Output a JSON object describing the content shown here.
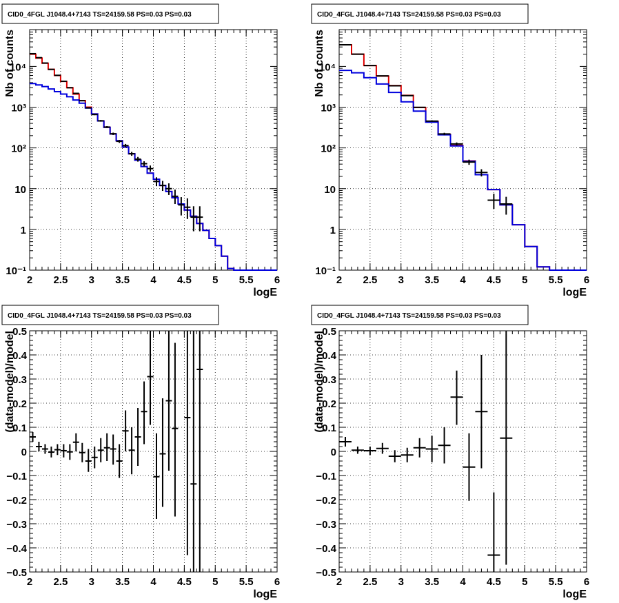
{
  "colors": {
    "total_model": "#e00000",
    "source_model": "#0000dd",
    "data": "#000000",
    "grid": "#000000"
  },
  "chart_data": [
    {
      "type": "line",
      "title": "CID0_4FGL J1048.4+7143 TS=24159.58 PS=0.03 PS=0.03",
      "xlabel": "logE",
      "ylabel": "Nb of counts",
      "yscale": "log",
      "xlim": [
        2,
        6
      ],
      "ylim": [
        0.1,
        80000
      ],
      "xticks": [
        "2",
        "2.5",
        "3",
        "3.5",
        "4",
        "4.5",
        "5",
        "5.5",
        "6"
      ],
      "yticks": [
        {
          "v": 0.1,
          "label": "10⁻¹"
        },
        {
          "v": 1,
          "label": "1"
        },
        {
          "v": 10,
          "label": "10"
        },
        {
          "v": 100,
          "label": "10²"
        },
        {
          "v": 1000,
          "label": "10³"
        },
        {
          "v": 10000,
          "label": "10⁴"
        }
      ],
      "grid": true,
      "bin_edges": [
        2.0,
        2.1,
        2.2,
        2.3,
        2.4,
        2.5,
        2.6,
        2.7,
        2.8,
        2.9,
        3.0,
        3.1,
        3.2,
        3.3,
        3.4,
        3.5,
        3.6,
        3.7,
        3.8,
        3.9,
        4.0,
        4.1,
        4.2,
        4.3,
        4.4,
        4.5,
        4.6,
        4.7,
        4.8,
        4.9,
        5.0,
        5.1,
        5.2,
        5.3,
        5.4,
        5.5,
        5.6,
        5.7,
        5.8,
        5.9,
        6.0
      ],
      "series": [
        {
          "role": "total",
          "values": [
            20000,
            16000,
            12000,
            8500,
            6000,
            4300,
            3000,
            2100,
            1450,
            1000,
            680,
            460,
            320,
            220,
            150,
            105,
            72,
            50,
            35,
            24,
            17,
            12,
            8.5,
            6,
            4.2,
            3,
            2.1,
            1.4,
            0.95,
            0.6,
            0.4,
            0.22,
            0.11,
            0.1,
            0.1,
            0.1,
            0.1,
            0.1,
            0.1,
            0.1
          ]
        },
        {
          "role": "source",
          "values": [
            3800,
            3500,
            3200,
            2800,
            2400,
            2100,
            1800,
            1500,
            1250,
            950,
            680,
            460,
            320,
            220,
            150,
            105,
            72,
            50,
            35,
            24,
            17,
            12,
            8.5,
            6,
            4.2,
            3,
            2.1,
            1.4,
            0.95,
            0.6,
            0.4,
            0.22,
            0.11,
            0.1,
            0.1,
            0.1,
            0.1,
            0.1,
            0.1,
            0.1
          ]
        }
      ],
      "points": [
        {
          "x": 2.05,
          "y": 20500,
          "lo": 20300,
          "hi": 20700
        },
        {
          "x": 2.15,
          "y": 16400,
          "lo": 16250,
          "hi": 16550
        },
        {
          "x": 2.25,
          "y": 12100,
          "lo": 11980,
          "hi": 12220
        },
        {
          "x": 2.35,
          "y": 8450,
          "lo": 8360,
          "hi": 8540
        },
        {
          "x": 2.45,
          "y": 6050,
          "lo": 5970,
          "hi": 6130
        },
        {
          "x": 2.55,
          "y": 4320,
          "lo": 4250,
          "hi": 4390
        },
        {
          "x": 2.65,
          "y": 3000,
          "lo": 2945,
          "hi": 3055
        },
        {
          "x": 2.75,
          "y": 2180,
          "lo": 2135,
          "hi": 2225
        },
        {
          "x": 2.85,
          "y": 1440,
          "lo": 1400,
          "hi": 1480
        },
        {
          "x": 2.95,
          "y": 960,
          "lo": 930,
          "hi": 990
        },
        {
          "x": 3.05,
          "y": 660,
          "lo": 635,
          "hi": 685
        },
        {
          "x": 3.15,
          "y": 462,
          "lo": 440,
          "hi": 484
        },
        {
          "x": 3.25,
          "y": 325,
          "lo": 307,
          "hi": 343
        },
        {
          "x": 3.35,
          "y": 222,
          "lo": 207,
          "hi": 237
        },
        {
          "x": 3.45,
          "y": 145,
          "lo": 133,
          "hi": 157
        },
        {
          "x": 3.55,
          "y": 114,
          "lo": 103,
          "hi": 125
        },
        {
          "x": 3.65,
          "y": 72,
          "lo": 64,
          "hi": 80
        },
        {
          "x": 3.75,
          "y": 53,
          "lo": 46,
          "hi": 60
        },
        {
          "x": 3.85,
          "y": 41,
          "lo": 35,
          "hi": 47
        },
        {
          "x": 3.95,
          "y": 31,
          "lo": 26,
          "hi": 37
        },
        {
          "x": 4.05,
          "y": 15,
          "lo": 11.5,
          "hi": 19
        },
        {
          "x": 4.15,
          "y": 12,
          "lo": 8.8,
          "hi": 15.5
        },
        {
          "x": 4.25,
          "y": 10,
          "lo": 7,
          "hi": 13.5
        },
        {
          "x": 4.35,
          "y": 6.5,
          "lo": 4.2,
          "hi": 9.5
        },
        {
          "x": 4.45,
          "y": 4,
          "lo": 2.2,
          "hi": 6.2
        },
        {
          "x": 4.55,
          "y": 3.5,
          "lo": 1.8,
          "hi": 5.8
        },
        {
          "x": 4.65,
          "y": 2,
          "lo": 0.9,
          "hi": 3.7
        },
        {
          "x": 4.75,
          "y": 2,
          "lo": 0.9,
          "hi": 3.7
        }
      ]
    },
    {
      "type": "line",
      "title": "CID0_4FGL J1048.4+7143 TS=24159.58 PS=0.03 PS=0.03",
      "xlabel": "logE",
      "ylabel": "Nb of counts",
      "yscale": "log",
      "xlim": [
        2,
        6
      ],
      "ylim": [
        0.1,
        80000
      ],
      "xticks": [
        "2",
        "2.5",
        "3",
        "3.5",
        "4",
        "4.5",
        "5",
        "5.5",
        "6"
      ],
      "yticks": [
        {
          "v": 0.1,
          "label": "10⁻¹"
        },
        {
          "v": 1,
          "label": "1"
        },
        {
          "v": 10,
          "label": "10"
        },
        {
          "v": 100,
          "label": "10²"
        },
        {
          "v": 1000,
          "label": "10³"
        },
        {
          "v": 10000,
          "label": "10⁴"
        }
      ],
      "grid": true,
      "bin_edges": [
        2.0,
        2.2,
        2.4,
        2.6,
        2.8,
        3.0,
        3.2,
        3.4,
        3.6,
        3.8,
        4.0,
        4.2,
        4.4,
        4.6,
        4.8,
        5.0,
        5.2,
        5.4,
        5.6,
        5.8,
        6.0
      ],
      "series": [
        {
          "role": "total",
          "values": [
            34000,
            20000,
            10500,
            5800,
            3400,
            1950,
            980,
            450,
            215,
            115,
            48,
            22,
            9.5,
            4,
            1.3,
            0.38,
            0.12,
            0.1,
            0.1,
            0.1
          ]
        },
        {
          "role": "source",
          "values": [
            8000,
            7000,
            5300,
            3700,
            2300,
            1350,
            800,
            430,
            210,
            112,
            47,
            22,
            9.5,
            4,
            1.3,
            0.38,
            0.12,
            0.1,
            0.1,
            0.1
          ]
        }
      ],
      "points": [
        {
          "x": 2.1,
          "y": 34000,
          "lo": 33800,
          "hi": 34200
        },
        {
          "x": 2.3,
          "y": 20000,
          "lo": 19860,
          "hi": 20140
        },
        {
          "x": 2.5,
          "y": 10500,
          "lo": 10400,
          "hi": 10600
        },
        {
          "x": 2.7,
          "y": 5850,
          "lo": 5775,
          "hi": 5925
        },
        {
          "x": 2.9,
          "y": 3350,
          "lo": 3290,
          "hi": 3410
        },
        {
          "x": 3.1,
          "y": 1920,
          "lo": 1880,
          "hi": 1960
        },
        {
          "x": 3.3,
          "y": 990,
          "lo": 960,
          "hi": 1020
        },
        {
          "x": 3.5,
          "y": 455,
          "lo": 434,
          "hi": 476
        },
        {
          "x": 3.7,
          "y": 220,
          "lo": 205,
          "hi": 235
        },
        {
          "x": 3.9,
          "y": 125,
          "lo": 114,
          "hi": 136
        },
        {
          "x": 4.1,
          "y": 45,
          "lo": 38.5,
          "hi": 51.5
        },
        {
          "x": 4.3,
          "y": 25,
          "lo": 20,
          "hi": 30
        },
        {
          "x": 4.5,
          "y": 5.2,
          "lo": 3.2,
          "hi": 7.5
        },
        {
          "x": 4.7,
          "y": 4.2,
          "lo": 2.3,
          "hi": 6.3
        }
      ]
    },
    {
      "type": "scatter",
      "title": "CID0_4FGL J1048.4+7143 TS=24159.58 PS=0.03 PS=0.03",
      "xlabel": "logE",
      "ylabel": "(data-model)/model",
      "xlim": [
        2,
        6
      ],
      "ylim": [
        -0.5,
        0.5
      ],
      "xticks": [
        "2",
        "2.5",
        "3",
        "3.5",
        "4",
        "4.5",
        "5",
        "5.5",
        "6"
      ],
      "yticks": [
        "−0.5",
        "−0.4",
        "−0.3",
        "−0.2",
        "−0.1",
        "0",
        "0.1",
        "0.2",
        "0.3",
        "0.4",
        "0.5"
      ],
      "grid": true,
      "xhalf": 0.05,
      "points": [
        {
          "x": 2.05,
          "y": 0.06,
          "lo": 0.04,
          "hi": 0.08
        },
        {
          "x": 2.15,
          "y": 0.02,
          "lo": 0.0,
          "hi": 0.04
        },
        {
          "x": 2.25,
          "y": 0.01,
          "lo": -0.01,
          "hi": 0.03
        },
        {
          "x": 2.35,
          "y": -0.003,
          "lo": -0.025,
          "hi": 0.02
        },
        {
          "x": 2.45,
          "y": 0.007,
          "lo": -0.015,
          "hi": 0.03
        },
        {
          "x": 2.55,
          "y": 0.003,
          "lo": -0.025,
          "hi": 0.03
        },
        {
          "x": 2.65,
          "y": -0.002,
          "lo": -0.035,
          "hi": 0.03
        },
        {
          "x": 2.75,
          "y": 0.038,
          "lo": 0.0,
          "hi": 0.075
        },
        {
          "x": 2.85,
          "y": -0.005,
          "lo": -0.045,
          "hi": 0.035
        },
        {
          "x": 2.95,
          "y": -0.04,
          "lo": -0.085,
          "hi": 0.01
        },
        {
          "x": 3.05,
          "y": -0.025,
          "lo": -0.07,
          "hi": 0.02
        },
        {
          "x": 3.15,
          "y": 0.005,
          "lo": -0.045,
          "hi": 0.055
        },
        {
          "x": 3.25,
          "y": 0.015,
          "lo": -0.04,
          "hi": 0.075
        },
        {
          "x": 3.35,
          "y": 0.01,
          "lo": -0.055,
          "hi": 0.07
        },
        {
          "x": 3.45,
          "y": -0.04,
          "lo": -0.11,
          "hi": 0.03
        },
        {
          "x": 3.55,
          "y": 0.085,
          "lo": 0.0,
          "hi": 0.17
        },
        {
          "x": 3.65,
          "y": 0.005,
          "lo": -0.095,
          "hi": 0.1
        },
        {
          "x": 3.75,
          "y": 0.06,
          "lo": -0.06,
          "hi": 0.18
        },
        {
          "x": 3.85,
          "y": 0.165,
          "lo": 0.03,
          "hi": 0.29
        },
        {
          "x": 3.95,
          "y": 0.31,
          "lo": 0.11,
          "hi": 0.5
        },
        {
          "x": 4.05,
          "y": -0.105,
          "lo": -0.28,
          "hi": 0.075
        },
        {
          "x": 4.15,
          "y": -0.01,
          "lo": -0.23,
          "hi": 0.22
        },
        {
          "x": 4.25,
          "y": 0.21,
          "lo": -0.08,
          "hi": 0.5
        },
        {
          "x": 4.35,
          "y": 0.095,
          "lo": -0.27,
          "hi": 0.45
        },
        {
          "x": 4.55,
          "y": 0.14,
          "lo": -0.43,
          "hi": 0.5
        },
        {
          "x": 4.65,
          "y": -0.135,
          "lo": -0.5,
          "hi": 0.5
        },
        {
          "x": 4.75,
          "y": 0.34,
          "lo": -0.5,
          "hi": 0.5
        }
      ]
    },
    {
      "type": "scatter",
      "title": "CID0_4FGL J1048.4+7143 TS=24159.58 PS=0.03 PS=0.03",
      "xlabel": "logE",
      "ylabel": "(data-model)/model",
      "xlim": [
        2,
        6
      ],
      "ylim": [
        -0.5,
        0.5
      ],
      "xticks": [
        "2",
        "2.5",
        "3",
        "3.5",
        "4",
        "4.5",
        "5",
        "5.5",
        "6"
      ],
      "yticks": [
        "−0.5",
        "−0.4",
        "−0.3",
        "−0.2",
        "−0.1",
        "0",
        "0.1",
        "0.2",
        "0.3",
        "0.4",
        "0.5"
      ],
      "grid": true,
      "xhalf": 0.1,
      "points": [
        {
          "x": 2.1,
          "y": 0.04,
          "lo": 0.02,
          "hi": 0.06
        },
        {
          "x": 2.3,
          "y": 0.005,
          "lo": -0.01,
          "hi": 0.02
        },
        {
          "x": 2.5,
          "y": 0.003,
          "lo": -0.015,
          "hi": 0.02
        },
        {
          "x": 2.7,
          "y": 0.012,
          "lo": -0.01,
          "hi": 0.035
        },
        {
          "x": 2.9,
          "y": -0.02,
          "lo": -0.045,
          "hi": 0.005
        },
        {
          "x": 3.1,
          "y": -0.015,
          "lo": -0.045,
          "hi": 0.015
        },
        {
          "x": 3.3,
          "y": 0.015,
          "lo": -0.025,
          "hi": 0.055
        },
        {
          "x": 3.5,
          "y": 0.01,
          "lo": -0.045,
          "hi": 0.065
        },
        {
          "x": 3.7,
          "y": 0.025,
          "lo": -0.05,
          "hi": 0.1
        },
        {
          "x": 3.9,
          "y": 0.225,
          "lo": 0.11,
          "hi": 0.335
        },
        {
          "x": 4.1,
          "y": -0.065,
          "lo": -0.205,
          "hi": 0.075
        },
        {
          "x": 4.3,
          "y": 0.165,
          "lo": -0.07,
          "hi": 0.4
        },
        {
          "x": 4.5,
          "y": -0.43,
          "lo": -0.5,
          "hi": -0.17
        },
        {
          "x": 4.7,
          "y": 0.055,
          "lo": -0.47,
          "hi": 0.5
        }
      ]
    }
  ]
}
